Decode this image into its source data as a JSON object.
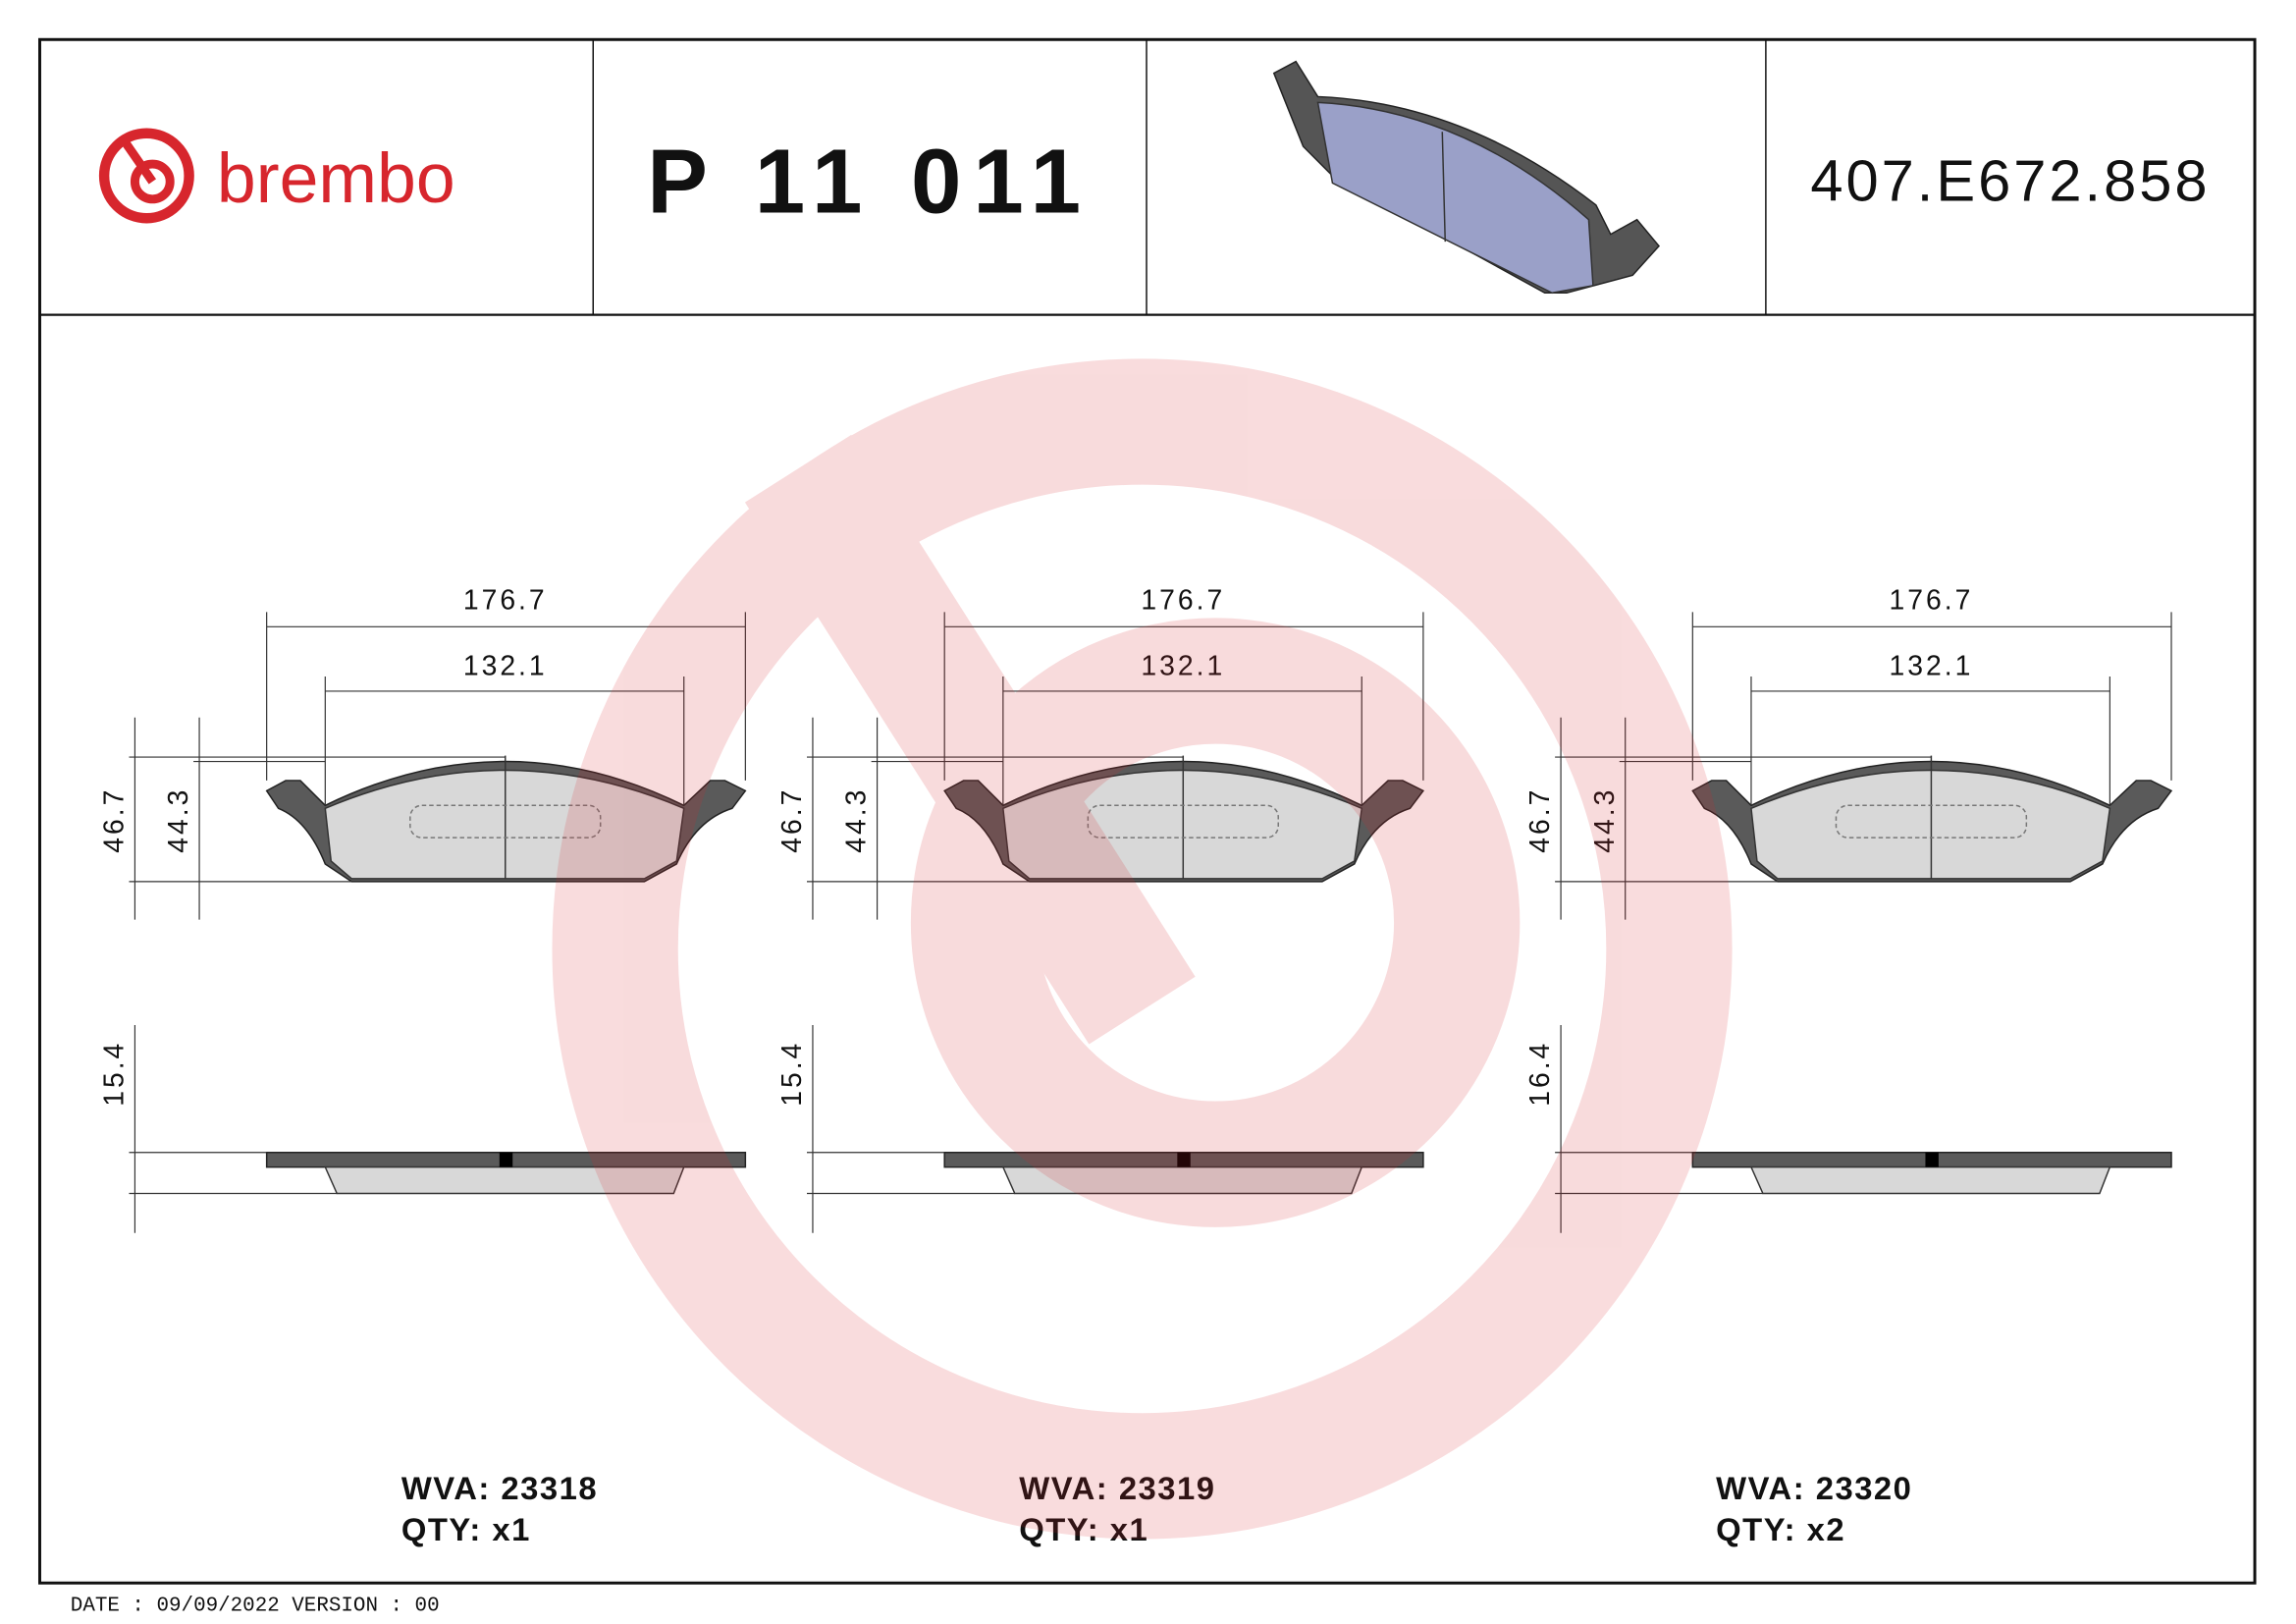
{
  "header": {
    "brand": "brembo",
    "part_number": "P 11 011",
    "code": "407.E672.858"
  },
  "views": [
    {
      "width_total": "176.7",
      "width_inner": "132.1",
      "height_total": "46.7",
      "height_pad": "44.3",
      "thickness": "15.4",
      "wva": "WVA: 23318",
      "qty": "QTY: x1"
    },
    {
      "width_total": "176.7",
      "width_inner": "132.1",
      "height_total": "46.7",
      "height_pad": "44.3",
      "thickness": "15.4",
      "wva": "WVA: 23319",
      "qty": "QTY: x1"
    },
    {
      "width_total": "176.7",
      "width_inner": "132.1",
      "height_total": "46.7",
      "height_pad": "44.3",
      "thickness": "16.4",
      "wva": "WVA: 23320",
      "qty": "QTY: x2"
    }
  ],
  "footer": {
    "date": "DATE : 09/09/2022 VERSION : 00"
  }
}
